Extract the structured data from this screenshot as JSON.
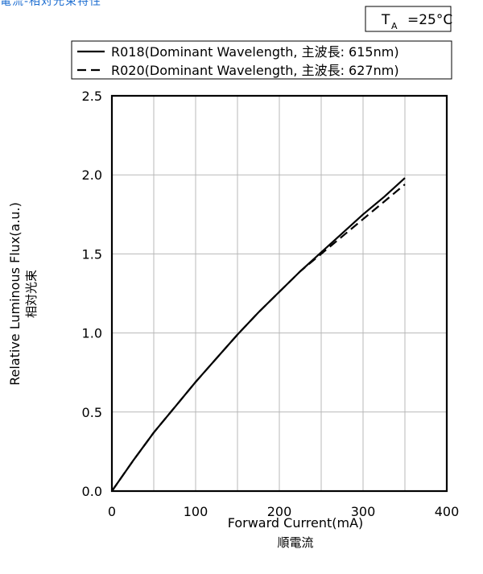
{
  "header_fragment": "電流-相対光束特性",
  "condition": {
    "label": "T",
    "sub": "A",
    "value": "=25°C"
  },
  "chart_data": {
    "type": "line",
    "xlabel": "Forward Current(mA)",
    "xlabel_jp": "順電流",
    "ylabel": "Relative Luminous Flux(a.u.)",
    "ylabel_jp": "相対光束",
    "xlim": [
      0,
      400
    ],
    "ylim": [
      0,
      2.5
    ],
    "x_ticks": [
      "0",
      "100",
      "200",
      "300",
      "400"
    ],
    "y_ticks": [
      "0.0",
      "0.5",
      "1.0",
      "1.5",
      "2.0",
      "2.5"
    ],
    "x_tick_values": [
      0,
      100,
      200,
      300,
      400
    ],
    "y_tick_values": [
      0,
      0.5,
      1.0,
      1.5,
      2.0,
      2.5
    ],
    "x_minor_grid": [
      50,
      150,
      250,
      350
    ],
    "grid": true,
    "legend_position": "top",
    "series": [
      {
        "name": "R018(Dominant Wavelength, 主波長: 615nm)",
        "style": "solid",
        "color": "#000000",
        "x": [
          0,
          25,
          50,
          75,
          100,
          125,
          150,
          175,
          200,
          225,
          250,
          275,
          300,
          325,
          350
        ],
        "y": [
          0,
          0.19,
          0.37,
          0.53,
          0.69,
          0.84,
          0.99,
          1.13,
          1.26,
          1.39,
          1.51,
          1.63,
          1.75,
          1.86,
          1.98
        ]
      },
      {
        "name": "R020(Dominant Wavelength, 主波長: 627nm)",
        "style": "dashed",
        "color": "#000000",
        "x": [
          0,
          25,
          50,
          75,
          100,
          125,
          150,
          175,
          200,
          225,
          250,
          275,
          300,
          325,
          350
        ],
        "y": [
          0,
          0.19,
          0.37,
          0.53,
          0.69,
          0.84,
          0.99,
          1.13,
          1.26,
          1.39,
          1.5,
          1.61,
          1.72,
          1.83,
          1.94
        ]
      }
    ]
  }
}
